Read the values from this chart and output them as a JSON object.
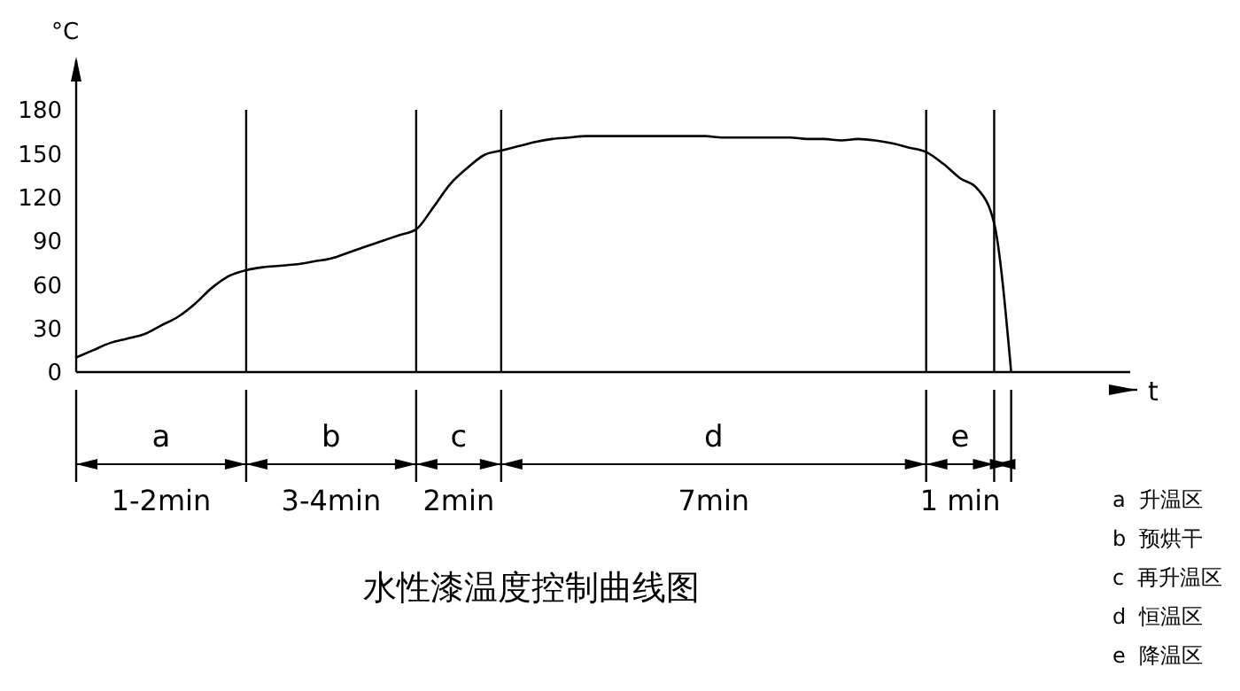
{
  "chart_data": {
    "type": "line",
    "title": "水性漆温度控制曲线图",
    "xlabel": "t",
    "ylabel": "°C",
    "tick_labels": "y",
    "grid": "x",
    "categories": [
      null,
      null,
      null,
      null,
      null,
      null,
      null,
      null,
      null,
      null,
      null,
      null,
      null,
      null,
      null,
      null,
      null,
      null,
      null,
      null,
      null,
      null,
      null,
      null,
      null,
      null,
      null,
      null,
      null,
      null,
      null,
      null,
      null,
      null,
      null,
      null,
      null,
      null,
      null,
      null,
      null,
      null,
      null,
      null,
      null,
      null,
      null,
      null,
      null,
      null,
      null,
      null,
      null,
      null,
      null,
      null,
      null,
      null,
      null,
      null,
      null,
      null,
      null
    ],
    "series": [
      {
        "color": "#000000",
        "values": [
          10,
          15,
          20,
          23,
          26,
          32,
          38,
          47,
          58,
          66,
          70,
          72,
          73,
          74,
          76,
          78,
          82,
          86,
          90,
          94,
          98,
          113,
          129,
          140,
          149,
          152,
          155,
          158,
          160,
          161,
          162,
          162,
          162,
          162,
          162,
          162,
          162,
          162,
          161,
          161,
          161,
          161,
          161,
          160,
          160,
          159,
          160,
          159,
          157,
          154,
          151,
          143,
          133,
          126,
          102,
          0,
          null,
          null,
          null,
          null,
          null,
          null,
          null
        ]
      }
    ],
    "ylim": [
      0,
      180
    ],
    "yticks": [
      0,
      30,
      60,
      90,
      120,
      150,
      180
    ],
    "annotations": [
      "a",
      "b",
      "c",
      "d",
      "e",
      "1-2min",
      "3-4min",
      "2min",
      "7min",
      "1 min",
      "a  升温区",
      "b  预烘干",
      "c  再升温区",
      "d  恒温区",
      "e  降温区"
    ]
  }
}
